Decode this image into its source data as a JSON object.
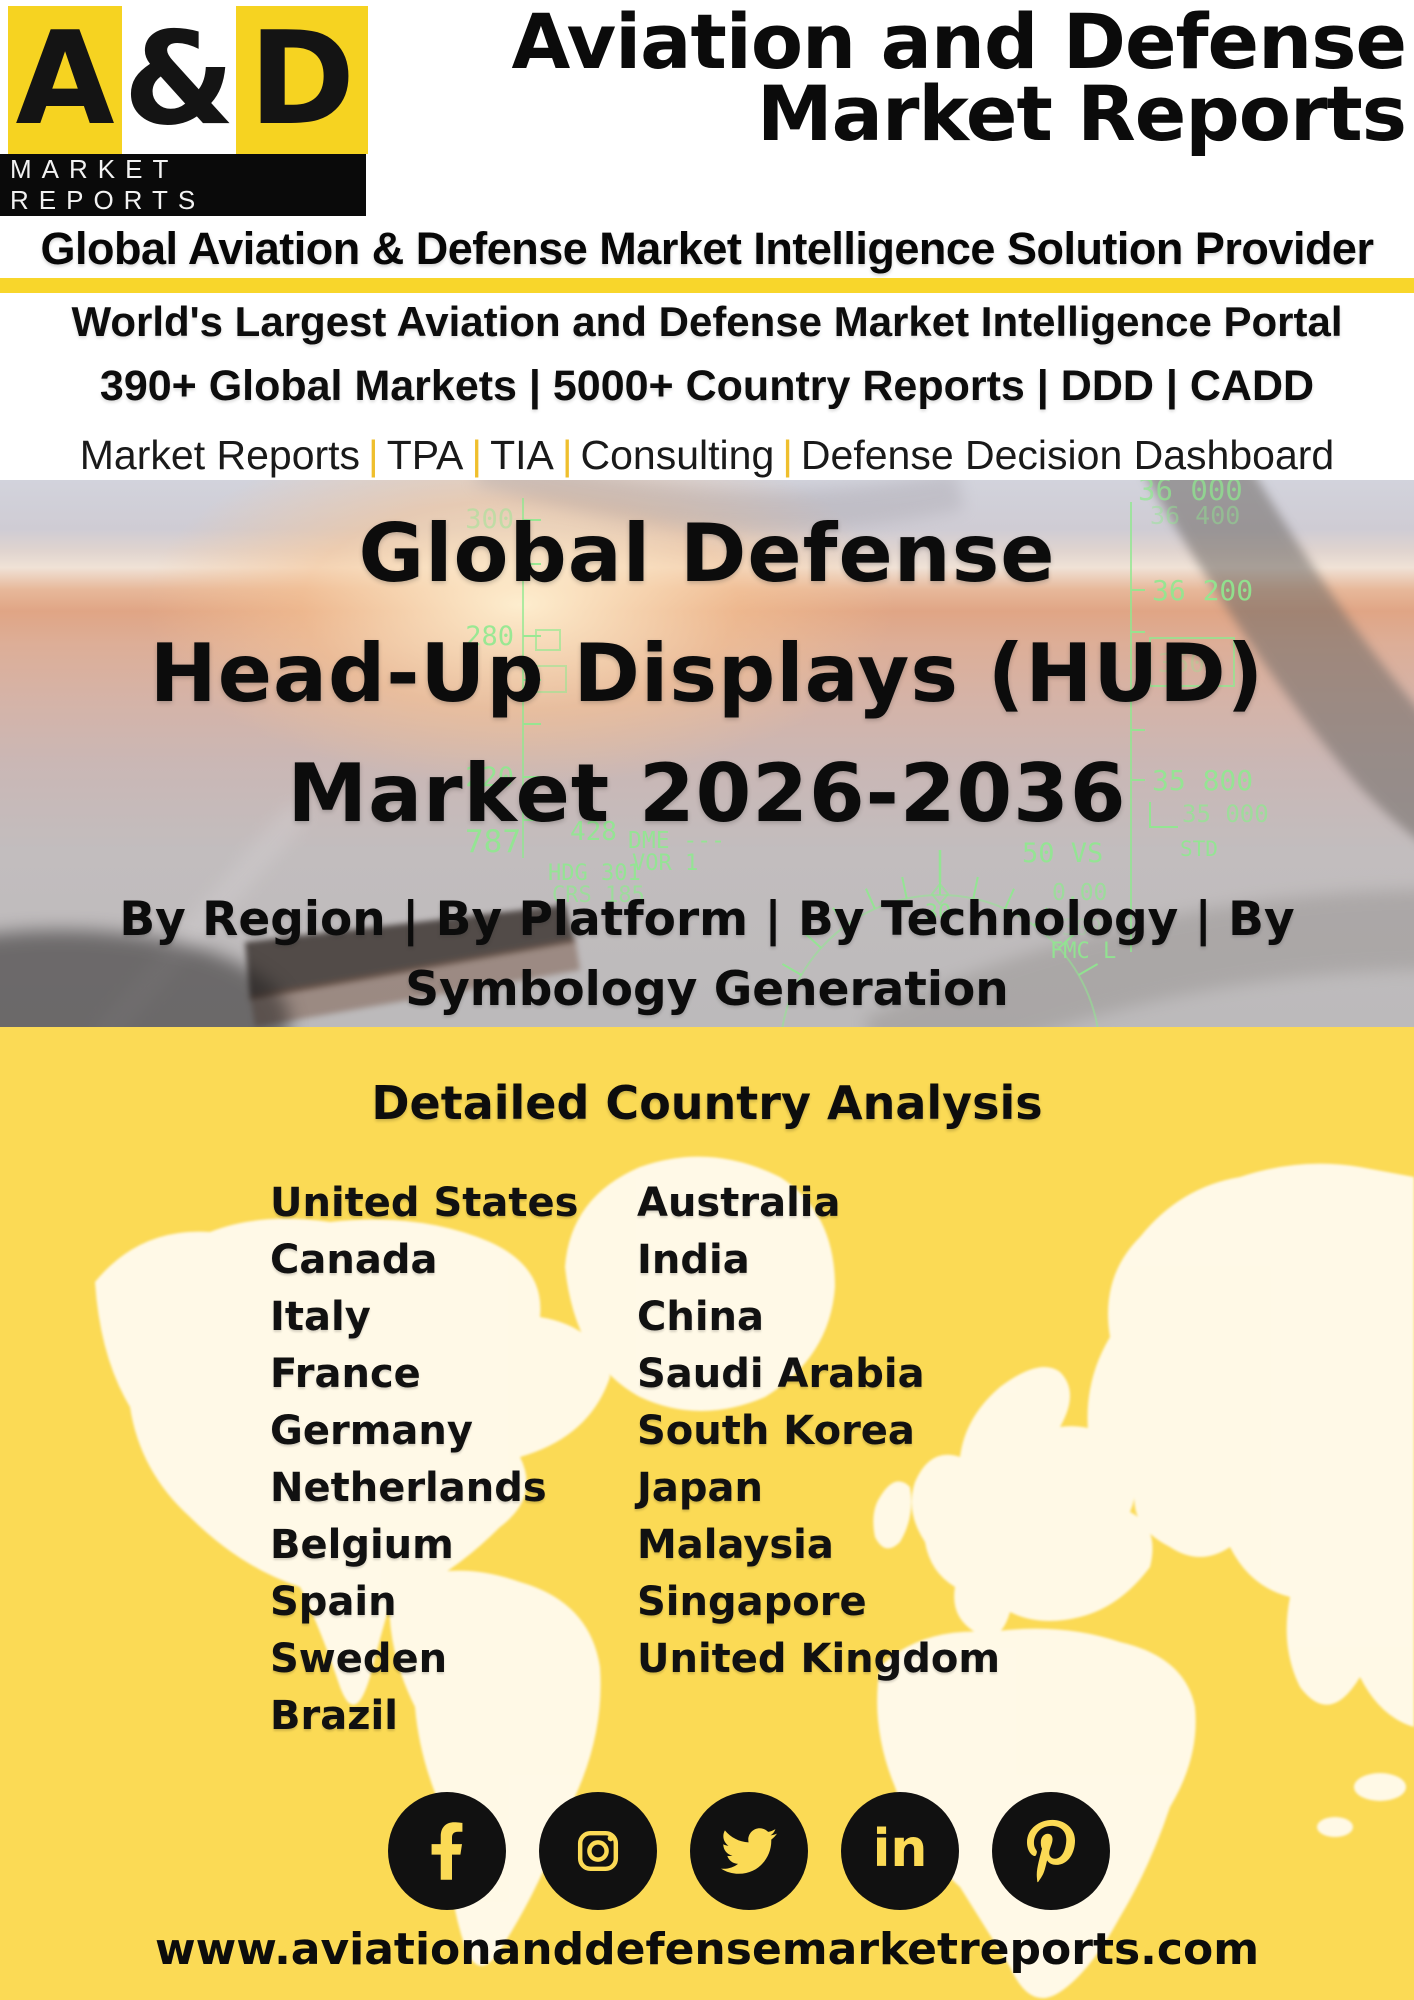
{
  "brand": {
    "logo_letter_a": "A",
    "logo_letter_amp": "&",
    "logo_letter_d": "D",
    "logo_subtext": "MARKET REPORTS",
    "title_line1": "Aviation and Defense",
    "title_line2": "Market Reports",
    "tagline": "Global Aviation & Defense Market Intelligence Solution Provider"
  },
  "intro": {
    "portal_line": "World's Largest Aviation and Defense Market Intelligence Portal",
    "markets_line": "390+ Global Markets | 5000+ Country Reports | DDD | CADD",
    "services_segments": [
      "Market Reports",
      "TPA",
      "TIA",
      "Consulting",
      "Defense Decision Dashboard"
    ],
    "services_separator": "|"
  },
  "hero": {
    "title_line1": "Global Defense",
    "title_line2": "Head-Up Displays (HUD)",
    "title_line3": "Market 2026-2036",
    "subtitle": "By Region | By Platform | By Technology | By Symbology Generation",
    "hud": {
      "speed_labels": {
        "s300": "300",
        "s280": "280",
        "s220": "220"
      },
      "alt_labels": {
        "a36000": "36 000",
        "a36400": "36 400",
        "a36200": "36 200",
        "a35800": "35 800",
        "a35000": "35 000",
        "a350": "350"
      },
      "misc": {
        "t787": "787",
        "t428": "428",
        "dme": "DME ---",
        "vor": "VOR 1",
        "hdg": "HDG 301",
        "crs": "CRS 185",
        "vs": "50 VS",
        "std": "STD",
        "zero": "0.00",
        "faint300": "300",
        "fmc": "FMC L",
        "c30": "30"
      }
    }
  },
  "countries": {
    "heading": "Detailed Country Analysis",
    "left": [
      "United States",
      "Canada",
      "Italy",
      "France",
      "Germany",
      "Netherlands",
      "Belgium",
      "Spain",
      "Sweden",
      "Brazil"
    ],
    "right": [
      "Australia",
      "India",
      "China",
      "Saudi Arabia",
      "South Korea",
      "Japan",
      "Malaysia",
      "Singapore",
      "United Kingdom"
    ]
  },
  "footer": {
    "social_icons": [
      "facebook",
      "instagram",
      "twitter",
      "linkedin",
      "pinterest"
    ],
    "linkedin_glyph": "in",
    "website": "www.aviationanddefensemarketreports.com"
  },
  "colors": {
    "logo_yellow": "#F6D321",
    "stripe_yellow": "#F8D62B",
    "section_yellow": "#FBDA55",
    "hud_green": "#8FE98F",
    "bar_black": "#0a0a0a"
  }
}
